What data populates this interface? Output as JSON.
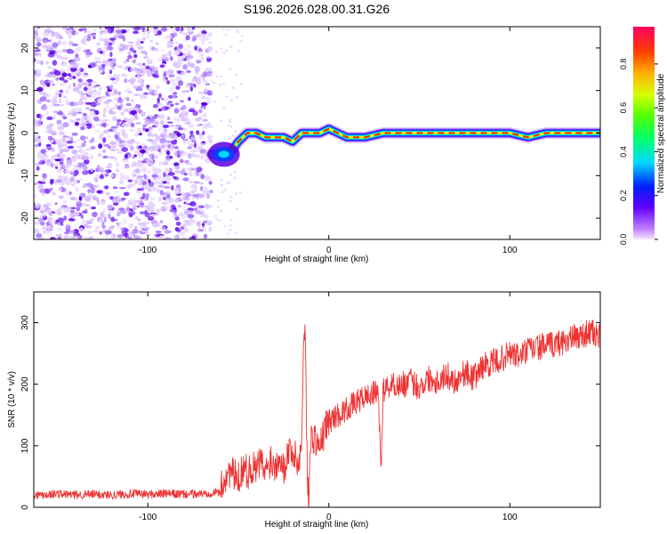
{
  "title": "S196.2026.028.00.31.G26",
  "chart_data": [
    {
      "type": "heatmap",
      "xlabel": "Height of straight line (km)",
      "ylabel": "Frequency (Hz)",
      "xlim": [
        -163,
        150
      ],
      "ylim": [
        -25,
        25
      ],
      "x_ticks": [
        -100,
        0,
        100
      ],
      "y_ticks": [
        -20,
        -10,
        0,
        10,
        20
      ],
      "noise_region_x": [
        -163,
        -65
      ],
      "signal_ridge": {
        "x": [
          -65,
          -60,
          -55,
          -50,
          -45,
          -40,
          -35,
          -30,
          -25,
          -20,
          -15,
          -10,
          -5,
          0,
          5,
          10,
          20,
          30,
          40,
          50,
          60,
          70,
          80,
          90,
          100,
          110,
          120,
          130,
          140,
          150
        ],
        "frequency_hz": [
          -5,
          -5,
          -5,
          -2,
          0,
          0,
          -1,
          -1,
          -1,
          -2,
          0,
          0,
          0,
          1,
          0,
          -1,
          -1,
          0,
          0,
          0,
          0,
          0,
          0,
          0,
          0,
          -1,
          0,
          0,
          0,
          0
        ]
      },
      "colorbar": {
        "label": "Normalized spectral amplitude",
        "range": [
          0,
          0.97
        ],
        "ticks": [
          0.0,
          0.2,
          0.4,
          0.6,
          0.8
        ]
      }
    },
    {
      "type": "line",
      "xlabel": "Height of straight line (km)",
      "ylabel": "SNR (10 * v/v)",
      "xlim": [
        -163,
        150
      ],
      "ylim": [
        0,
        350
      ],
      "x_ticks": [
        -100,
        0,
        100
      ],
      "y_ticks": [
        0,
        100,
        200,
        300
      ],
      "color": "#ee3333",
      "series": [
        {
          "name": "SNR",
          "x": [
            -163,
            -150,
            -140,
            -130,
            -120,
            -110,
            -100,
            -90,
            -80,
            -70,
            -60,
            -58,
            -55,
            -52,
            -50,
            -47,
            -45,
            -43,
            -40,
            -38,
            -35,
            -32,
            -30,
            -27,
            -25,
            -22,
            -20,
            -17,
            -15,
            -14,
            -13,
            -12,
            -11,
            -10,
            -8,
            -5,
            -2,
            0,
            5,
            10,
            15,
            20,
            25,
            27,
            28,
            29,
            30,
            32,
            35,
            40,
            45,
            50,
            55,
            60,
            65,
            70,
            75,
            80,
            85,
            90,
            95,
            100,
            105,
            110,
            115,
            120,
            125,
            130,
            135,
            140,
            145,
            150
          ],
          "values": [
            20,
            22,
            20,
            21,
            20,
            22,
            21,
            22,
            21,
            22,
            25,
            45,
            60,
            50,
            45,
            70,
            55,
            65,
            60,
            75,
            55,
            80,
            65,
            90,
            60,
            95,
            90,
            70,
            100,
            260,
            305,
            60,
            20,
            110,
            115,
            95,
            130,
            140,
            150,
            160,
            170,
            180,
            185,
            190,
            130,
            75,
            190,
            195,
            200,
            198,
            205,
            195,
            210,
            205,
            215,
            205,
            220,
            210,
            230,
            235,
            240,
            250,
            245,
            255,
            260,
            262,
            265,
            270,
            275,
            280,
            285,
            275
          ]
        }
      ]
    }
  ]
}
